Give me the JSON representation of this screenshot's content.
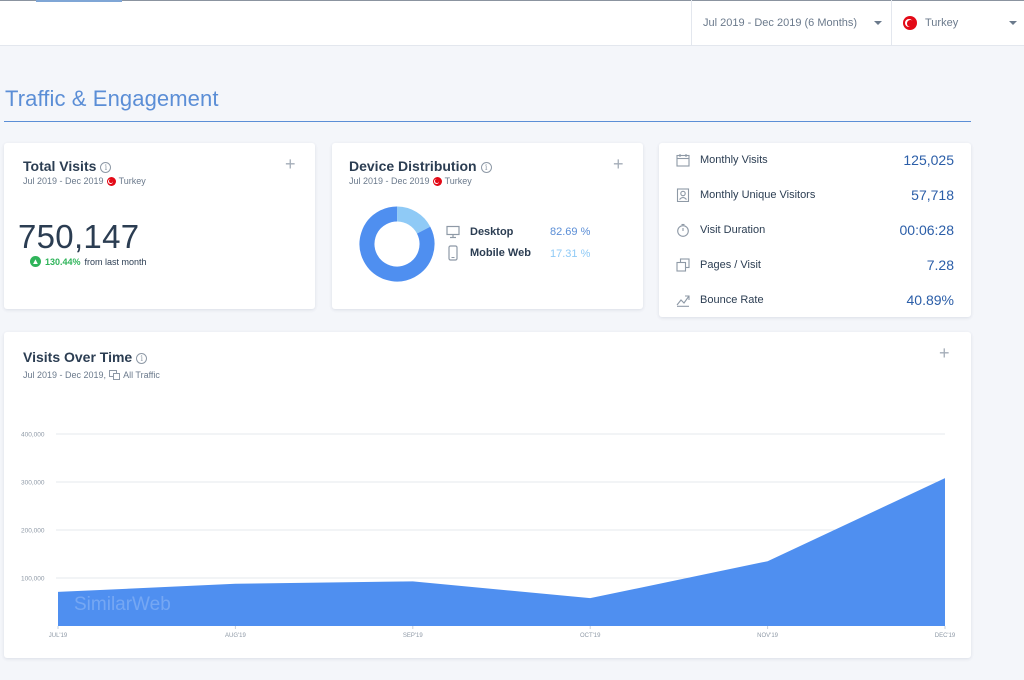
{
  "topbar": {
    "date_range": "Jul 2019 - Dec 2019 (6 Months)",
    "country": "Turkey"
  },
  "section": {
    "title": "Traffic & Engagement"
  },
  "total_visits": {
    "title": "Total Visits",
    "subtitle_date": "Jul 2019 - Dec 2019",
    "subtitle_country": "Turkey",
    "value": "750,147",
    "growth_pct": "130.44%",
    "growth_text": "from last month"
  },
  "device": {
    "title": "Device Distribution",
    "subtitle_date": "Jul 2019 - Dec 2019",
    "subtitle_country": "Turkey",
    "items": [
      {
        "label": "Desktop",
        "value": "82.69 %",
        "share": 82.69,
        "color": "#4f8ff0"
      },
      {
        "label": "Mobile Web",
        "value": "17.31 %",
        "share": 17.31,
        "color": "#8fcaf6"
      }
    ]
  },
  "metrics": [
    {
      "label": "Monthly Visits",
      "value": "125,025",
      "icon": "calendar-icon"
    },
    {
      "label": "Monthly Unique Visitors",
      "value": "57,718",
      "icon": "visitor-icon"
    },
    {
      "label": "Visit Duration",
      "value": "00:06:28",
      "icon": "stopwatch-icon"
    },
    {
      "label": "Pages / Visit",
      "value": "7.28",
      "icon": "pages-icon"
    },
    {
      "label": "Bounce Rate",
      "value": "40.89%",
      "icon": "bounce-icon"
    }
  ],
  "visits_over_time": {
    "title": "Visits Over Time",
    "subtitle": "Jul 2019 - Dec 2019,",
    "traffic_label": "All Traffic",
    "watermark": "SimilarWeb"
  },
  "chart_data": {
    "type": "area",
    "categories": [
      "JUL'19",
      "AUG'19",
      "SEP'19",
      "OCT'19",
      "NOV'19",
      "DEC'19"
    ],
    "series": [
      {
        "values": [
          71000,
          88000,
          93000,
          58000,
          135000,
          308000
        ]
      }
    ],
    "yticks": [
      "100,000",
      "200,000",
      "300,000",
      "400,000"
    ],
    "ytick_values": [
      100000,
      200000,
      300000,
      400000
    ],
    "ylim": [
      0,
      400000
    ],
    "color": "#4f8ff0",
    "grid": true
  }
}
